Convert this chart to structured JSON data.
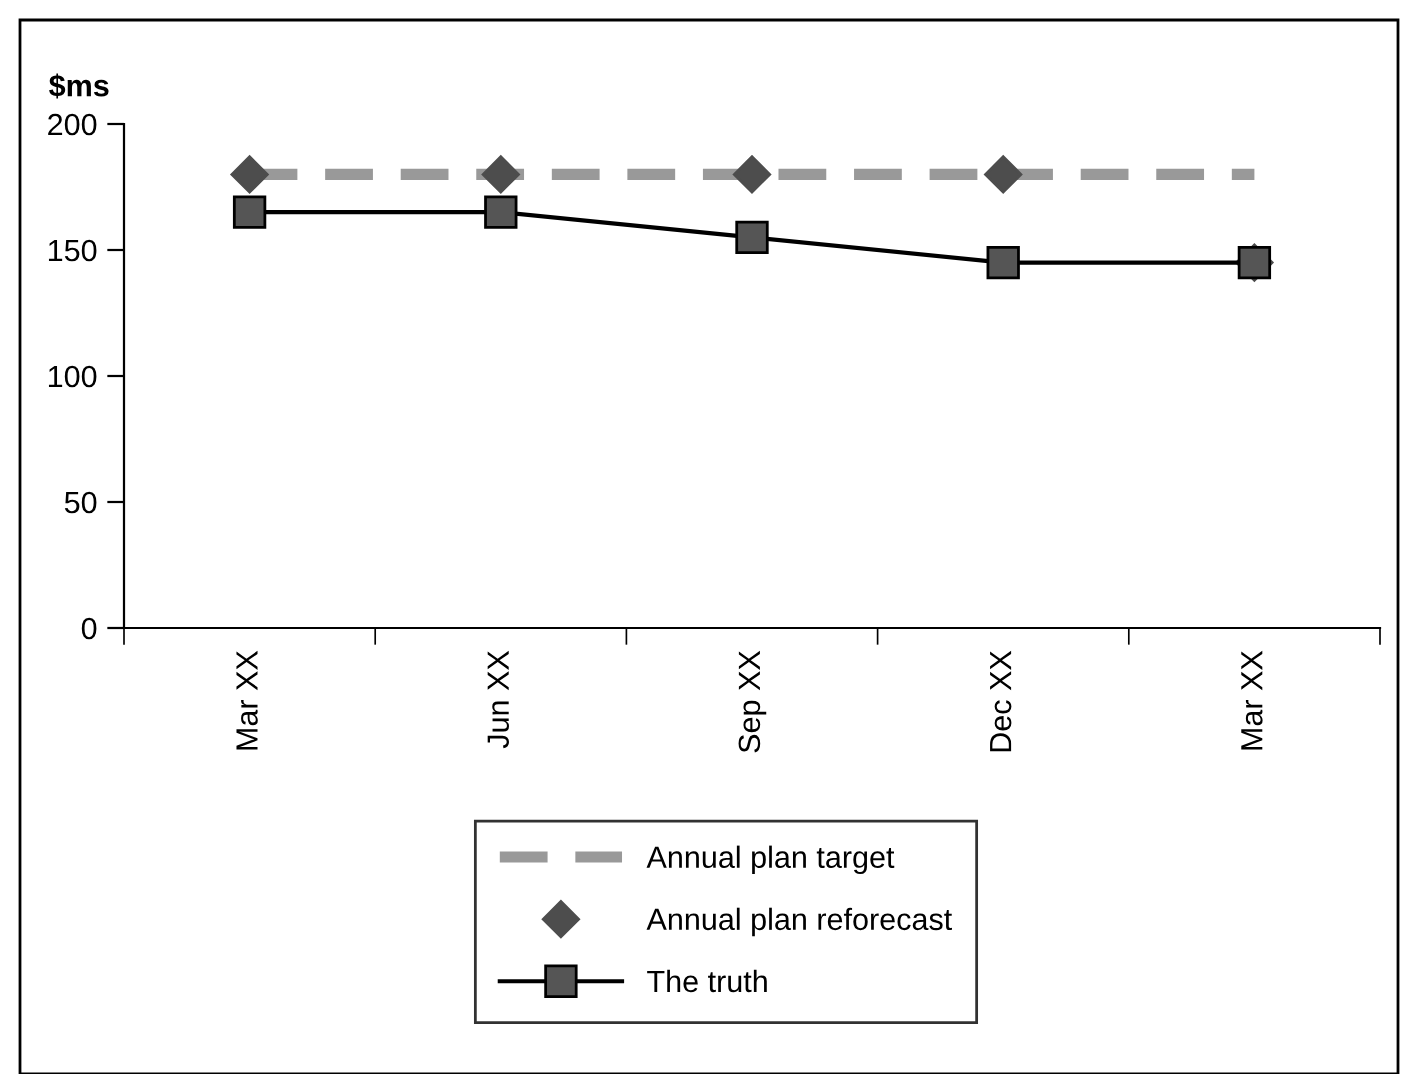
{
  "chart_data": {
    "type": "line",
    "ylabel": "$ms",
    "categories": [
      "Mar XX",
      "Jun XX",
      "Sep XX",
      "Dec XX",
      "Mar XX"
    ],
    "ylim": [
      0,
      200
    ],
    "yticks": [
      0,
      50,
      100,
      150,
      200
    ],
    "grid": false,
    "legend": "bottom",
    "series": [
      {
        "name": "Annual plan target",
        "color": "#999999",
        "line_style": "dashed",
        "marker": "none",
        "values": [
          180,
          180,
          180,
          180,
          180
        ]
      },
      {
        "name": "Annual plan reforecast",
        "type": "scatter",
        "color": "#4d4d4d",
        "marker": "diamond",
        "values": [
          180,
          180,
          180,
          180,
          145
        ]
      },
      {
        "name": "The truth",
        "color": "#000000",
        "marker": "square",
        "line_style": "solid",
        "values": [
          165,
          165,
          155,
          145,
          145
        ]
      }
    ]
  }
}
